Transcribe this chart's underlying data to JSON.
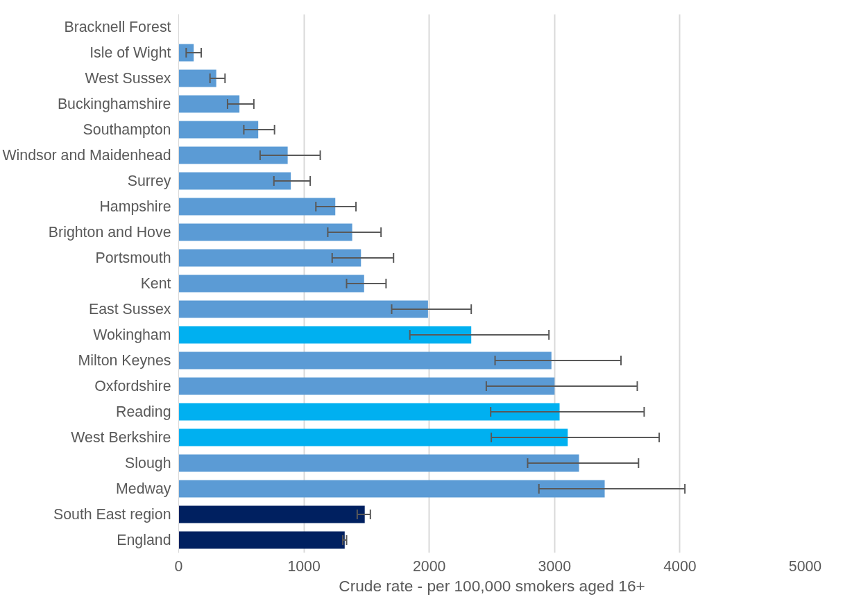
{
  "chart_data": {
    "type": "bar",
    "orientation": "horizontal",
    "xlabel": "Crude rate - per 100,000 smokers aged 16+",
    "categories": [
      "Bracknell Forest",
      "Isle of Wight",
      "West Sussex",
      "Buckinghamshire",
      "Southampton",
      "Windsor and Maidenhead",
      "Surrey",
      "Hampshire",
      "Brighton and Hove",
      "Portsmouth",
      "Kent",
      "East Sussex",
      "Wokingham",
      "Milton Keynes",
      "Oxfordshire",
      "Reading",
      "West Berkshire",
      "Slough",
      "Medway",
      "South East region",
      "England"
    ],
    "values": [
      null,
      120,
      300,
      485,
      635,
      870,
      895,
      1250,
      1385,
      1455,
      1480,
      1990,
      2335,
      2975,
      3000,
      3040,
      3105,
      3195,
      3400,
      1485,
      1325
    ],
    "colors": [
      "#5b9bd5",
      "#5b9bd5",
      "#5b9bd5",
      "#5b9bd5",
      "#5b9bd5",
      "#5b9bd5",
      "#5b9bd5",
      "#5b9bd5",
      "#5b9bd5",
      "#5b9bd5",
      "#5b9bd5",
      "#5b9bd5",
      "#00b0f0",
      "#5b9bd5",
      "#5b9bd5",
      "#00b0f0",
      "#00b0f0",
      "#5b9bd5",
      "#5b9bd5",
      "#002060",
      "#002060"
    ],
    "errors": [
      null,
      [
        60,
        180
      ],
      [
        250,
        370
      ],
      [
        390,
        600
      ],
      [
        520,
        765
      ],
      [
        650,
        1130
      ],
      [
        760,
        1050
      ],
      [
        1095,
        1415
      ],
      [
        1190,
        1615
      ],
      [
        1225,
        1715
      ],
      [
        1340,
        1655
      ],
      [
        1700,
        2335
      ],
      [
        1845,
        2955
      ],
      [
        2525,
        3530
      ],
      [
        2455,
        3660
      ],
      [
        2490,
        3715
      ],
      [
        2495,
        3835
      ],
      [
        2785,
        3670
      ],
      [
        2875,
        4040
      ],
      [
        1425,
        1530
      ],
      [
        1310,
        1340
      ]
    ],
    "xlim": [
      0,
      5000
    ],
    "xticks": [
      0,
      1000,
      2000,
      3000,
      4000,
      5000
    ],
    "grid": "x"
  }
}
